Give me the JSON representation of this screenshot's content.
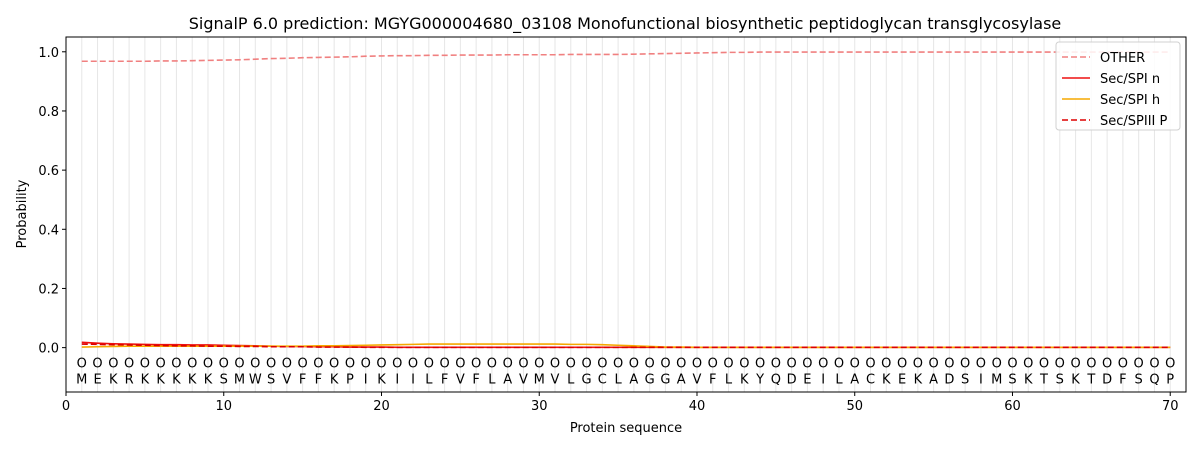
{
  "chart_data": {
    "type": "line",
    "title": "SignalP 6.0 prediction: MGYG000004680_03108 Monofunctional biosynthetic peptidoglycan transglycosylase",
    "xlabel": "Protein sequence",
    "ylabel": "Probability",
    "xlim": [
      0,
      71
    ],
    "ylim": [
      -0.15,
      1.05
    ],
    "xticks": [
      0,
      10,
      20,
      30,
      40,
      50,
      60,
      70
    ],
    "yticks": [
      0.0,
      0.2,
      0.4,
      0.6,
      0.8,
      1.0
    ],
    "grid": "vertical lines at each residue",
    "legend_position": "top-right",
    "sequence": [
      "M",
      "E",
      "K",
      "R",
      "K",
      "K",
      "K",
      "K",
      "K",
      "S",
      "M",
      "W",
      "S",
      "V",
      "F",
      "F",
      "K",
      "P",
      "I",
      "K",
      "I",
      "I",
      "L",
      "F",
      "V",
      "F",
      "L",
      "A",
      "V",
      "M",
      "V",
      "L",
      "G",
      "C",
      "L",
      "A",
      "G",
      "G",
      "A",
      "V",
      "F",
      "L",
      "K",
      "Y",
      "Q",
      "D",
      "E",
      "I",
      "L",
      "A",
      "C",
      "K",
      "E",
      "K",
      "A",
      "D",
      "S",
      "I",
      "M",
      "S",
      "K",
      "T",
      "S",
      "K",
      "T",
      "D",
      "F",
      "S",
      "Q",
      "P"
    ],
    "residue_marker": "O",
    "series": [
      {
        "name": "OTHER",
        "color": "#f08080",
        "style": "dashed",
        "values": [
          0.968,
          0.968,
          0.968,
          0.968,
          0.968,
          0.969,
          0.969,
          0.97,
          0.971,
          0.972,
          0.973,
          0.975,
          0.977,
          0.978,
          0.98,
          0.981,
          0.982,
          0.983,
          0.985,
          0.986,
          0.987,
          0.987,
          0.988,
          0.988,
          0.989,
          0.989,
          0.989,
          0.99,
          0.99,
          0.99,
          0.99,
          0.991,
          0.991,
          0.991,
          0.991,
          0.992,
          0.993,
          0.994,
          0.995,
          0.996,
          0.997,
          0.998,
          0.998,
          0.999,
          0.999,
          0.999,
          0.999,
          0.999,
          0.999,
          0.999,
          0.999,
          0.999,
          0.999,
          0.999,
          0.999,
          0.999,
          0.999,
          0.999,
          0.999,
          0.999,
          0.999,
          0.999,
          0.999,
          0.999,
          0.999,
          0.999,
          0.999,
          0.999,
          0.999,
          0.999
        ]
      },
      {
        "name": "Sec/SPI n",
        "color": "#ee1111",
        "style": "solid",
        "values": [
          0.018,
          0.015,
          0.013,
          0.012,
          0.011,
          0.01,
          0.01,
          0.009,
          0.009,
          0.008,
          0.007,
          0.006,
          0.005,
          0.004,
          0.004,
          0.003,
          0.003,
          0.002,
          0.002,
          0.002,
          0.001,
          0.001,
          0.001,
          0.001,
          0.001,
          0.001,
          0.001,
          0.001,
          0.001,
          0.001,
          0.001,
          0.001,
          0.001,
          0.001,
          0.001,
          0.001,
          0.001,
          0.001,
          0.001,
          0.001,
          0.001,
          0.001,
          0.001,
          0.001,
          0.001,
          0.001,
          0.001,
          0.001,
          0.001,
          0.001,
          0.001,
          0.001,
          0.001,
          0.001,
          0.001,
          0.001,
          0.001,
          0.001,
          0.001,
          0.001,
          0.001,
          0.001,
          0.001,
          0.001,
          0.001,
          0.001,
          0.001,
          0.001,
          0.001,
          0.001
        ]
      },
      {
        "name": "Sec/SPI h",
        "color": "#f5a800",
        "style": "solid",
        "values": [
          0.002,
          0.003,
          0.004,
          0.005,
          0.005,
          0.005,
          0.005,
          0.005,
          0.005,
          0.005,
          0.005,
          0.005,
          0.005,
          0.005,
          0.005,
          0.006,
          0.006,
          0.007,
          0.008,
          0.009,
          0.01,
          0.011,
          0.012,
          0.012,
          0.012,
          0.012,
          0.012,
          0.012,
          0.012,
          0.012,
          0.012,
          0.011,
          0.011,
          0.01,
          0.008,
          0.006,
          0.004,
          0.002,
          0.002,
          0.001,
          0.001,
          0.001,
          0.001,
          0.001,
          0.001,
          0.001,
          0.001,
          0.001,
          0.001,
          0.001,
          0.001,
          0.001,
          0.001,
          0.001,
          0.001,
          0.001,
          0.001,
          0.001,
          0.001,
          0.001,
          0.001,
          0.001,
          0.001,
          0.001,
          0.001,
          0.001,
          0.001,
          0.001,
          0.001,
          0.001
        ]
      },
      {
        "name": "Sec/SPIII P",
        "color": "#dd0000",
        "style": "dashed",
        "values": [
          0.012,
          0.011,
          0.01,
          0.009,
          0.008,
          0.007,
          0.006,
          0.006,
          0.005,
          0.005,
          0.004,
          0.004,
          0.003,
          0.003,
          0.003,
          0.002,
          0.002,
          0.002,
          0.001,
          0.001,
          0.001,
          0.001,
          0.001,
          0.001,
          0.001,
          0.001,
          0.001,
          0.001,
          0.001,
          0.001,
          0.001,
          0.001,
          0.001,
          0.001,
          0.001,
          0.001,
          0.001,
          0.001,
          0.001,
          0.001,
          0.001,
          0.001,
          0.001,
          0.001,
          0.001,
          0.001,
          0.001,
          0.001,
          0.001,
          0.001,
          0.001,
          0.001,
          0.001,
          0.001,
          0.001,
          0.001,
          0.001,
          0.001,
          0.001,
          0.001,
          0.001,
          0.001,
          0.001,
          0.001,
          0.001,
          0.001,
          0.001,
          0.001,
          0.001,
          0.001
        ]
      }
    ]
  }
}
